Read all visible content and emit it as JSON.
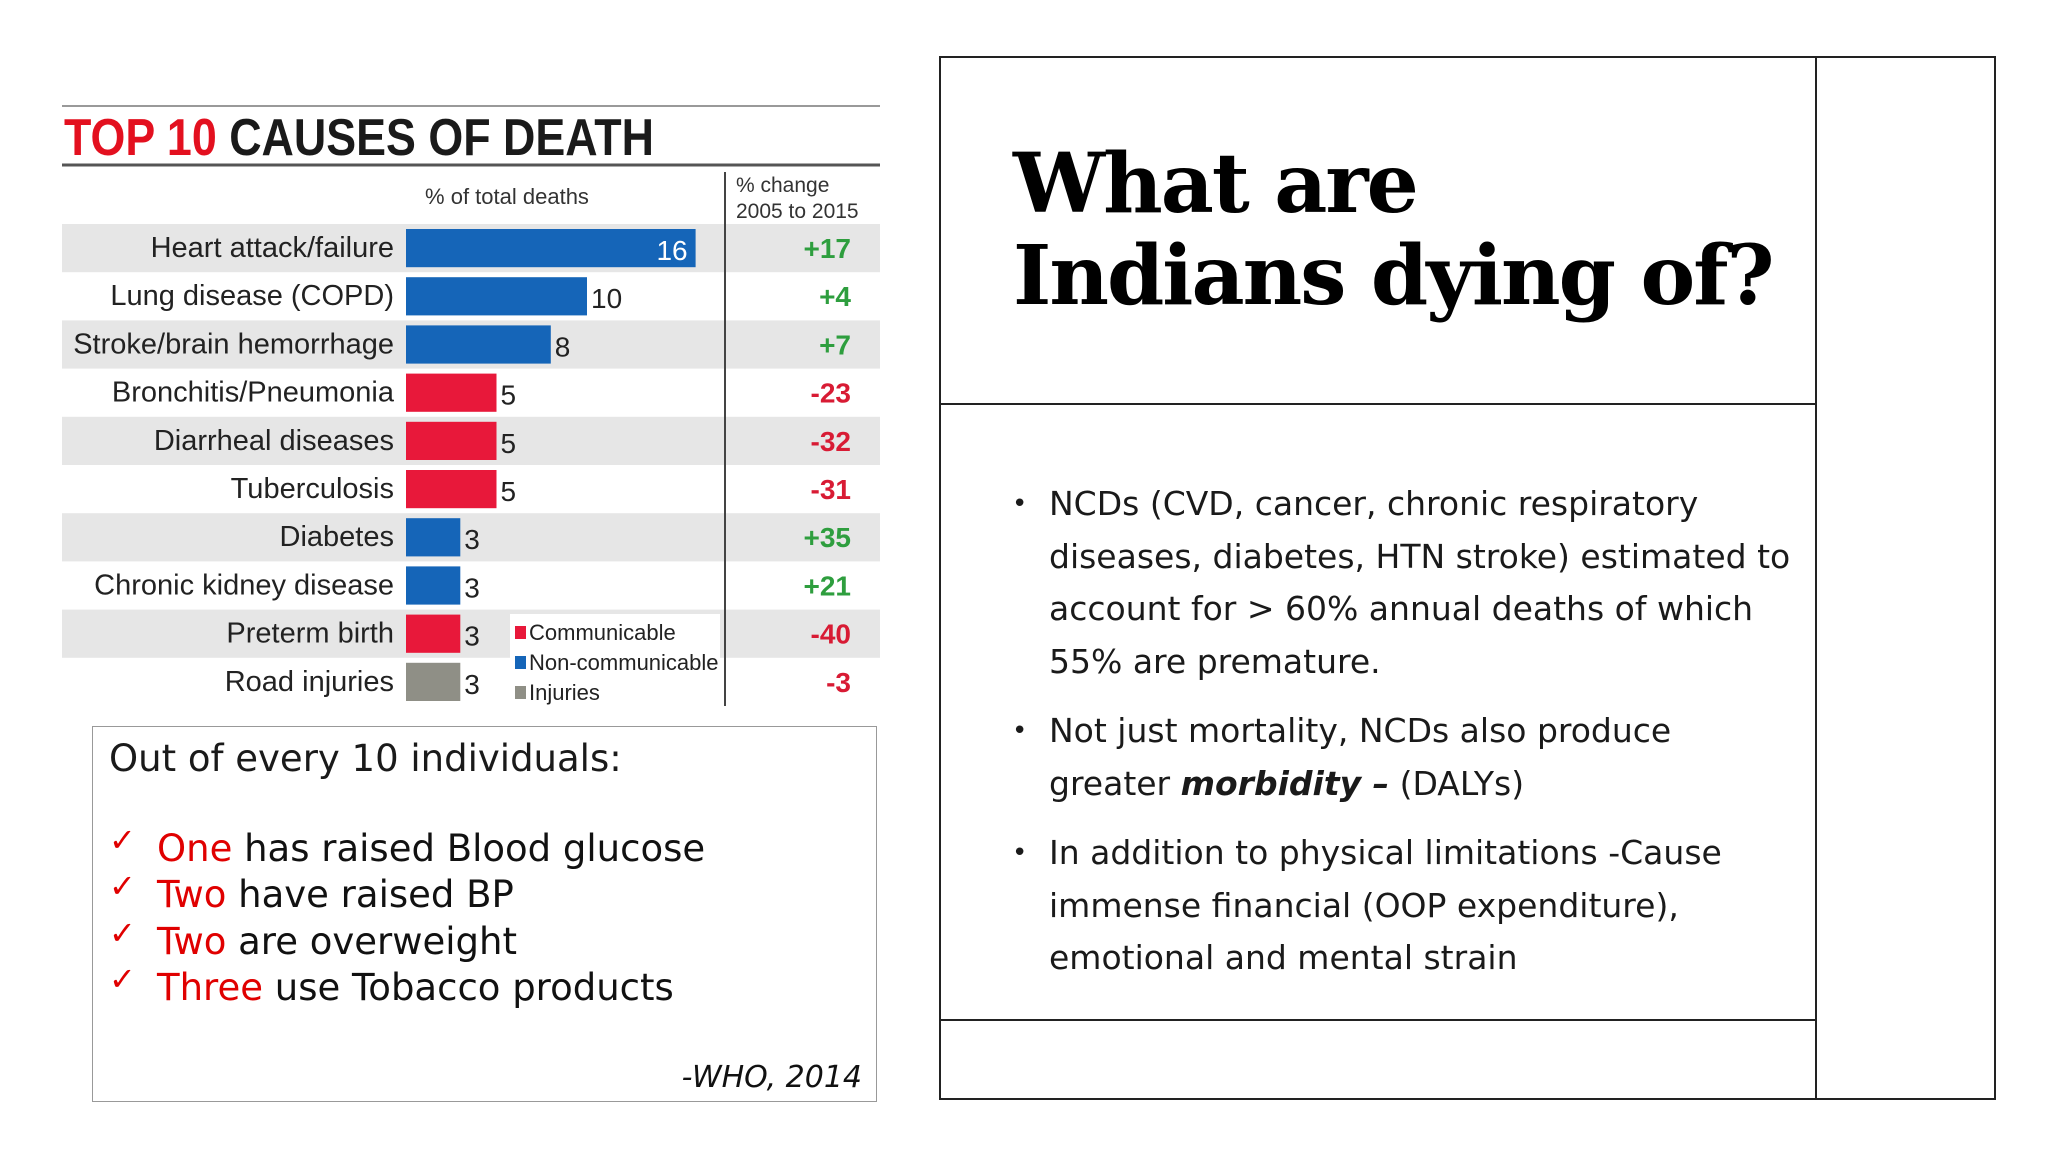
{
  "chart_data": {
    "type": "bar",
    "title_red": "TOP 10",
    "title_black": "CAUSES OF DEATH",
    "value_header": "% of total deaths",
    "change_header": [
      "% change",
      "2005 to 2015"
    ],
    "categories": [
      "Heart attack/failure",
      "Lung disease (COPD)",
      "Stroke/brain hemorrhage",
      "Bronchitis/Pneumonia",
      "Diarrheal diseases",
      "Tuberculosis",
      "Diabetes",
      "Chronic kidney disease",
      "Preterm birth",
      "Road injuries"
    ],
    "values": [
      16,
      10,
      8,
      5,
      5,
      5,
      3,
      3,
      3,
      3
    ],
    "groups": [
      "Non-communicable",
      "Non-communicable",
      "Non-communicable",
      "Communicable",
      "Communicable",
      "Communicable",
      "Non-communicable",
      "Non-communicable",
      "Communicable",
      "Injuries"
    ],
    "changes": [
      "+17",
      "+4",
      "+7",
      "-23",
      "-32",
      "-31",
      "+35",
      "+21",
      "-40",
      "-3"
    ],
    "legend": [
      {
        "name": "Communicable",
        "color": "#e8183a"
      },
      {
        "name": "Non-communicable",
        "color": "#1565b8"
      },
      {
        "name": "Injuries",
        "color": "#8f8f86"
      }
    ],
    "positive_color": "#2e9e3e",
    "negative_color": "#d81b34",
    "orientation": "horizontal"
  },
  "who_box": {
    "heading": "Out of every 10 individuals:",
    "items": [
      {
        "num": "One",
        "rest": " has raised Blood glucose"
      },
      {
        "num": "Two",
        "rest": " have raised BP"
      },
      {
        "num": "Two",
        "rest": " are overweight"
      },
      {
        "num": "Three",
        "rest": " use Tobacco products"
      }
    ],
    "check_icon": "✓",
    "source": "-WHO, 2014"
  },
  "slide": {
    "title_line1": "What are",
    "title_line2": "Indians dying of?",
    "bullets": {
      "b1": "NCDs (CVD, cancer, chronic respiratory diseases, diabetes, HTN  stroke) estimated to account for > 60% annual deaths of which 55% are premature.",
      "b2_text": "Not just mortality, NCDs also produce greater ",
      "b2_bold": "morbidity –",
      "b2_tail": " (DALYs)",
      "b3": "In addition to physical limitations -Cause immense financial (OOP expenditure), emotional and mental strain"
    }
  }
}
